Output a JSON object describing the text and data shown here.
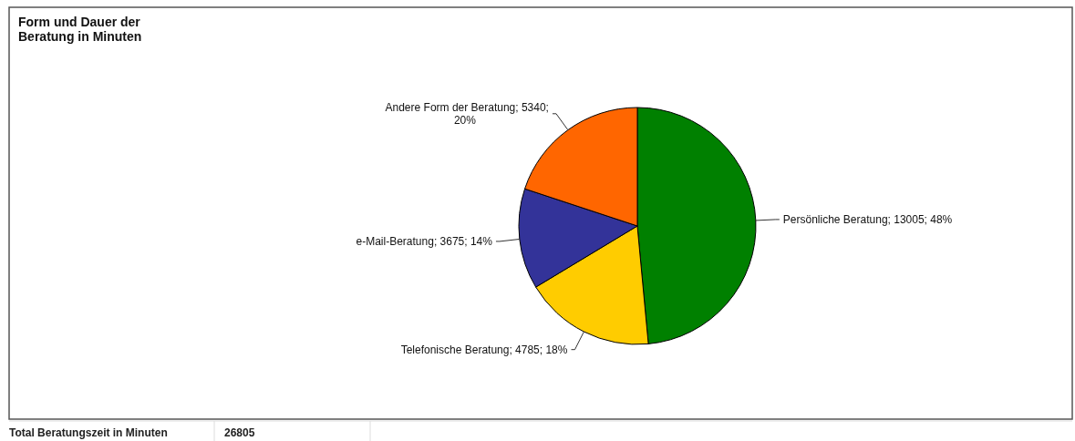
{
  "chart_data": {
    "type": "pie",
    "title": "Form und Dauer der Beratung in Minuten",
    "categories": [
      "Persönliche Beratung",
      "Telefonische Beratung",
      "e-Mail-Beratung",
      "Andere Form der Beratung"
    ],
    "values": [
      13005,
      4785,
      3675,
      5340
    ],
    "colors": [
      "#008000",
      "#ffcc00",
      "#333399",
      "#ff6600"
    ],
    "value_labels": [
      "13005; 48%",
      "4785; 18%",
      "3675; 14%",
      "5340; 20%"
    ],
    "annotations": [
      "Total Beratungszeit in Minuten",
      "26805"
    ]
  }
}
